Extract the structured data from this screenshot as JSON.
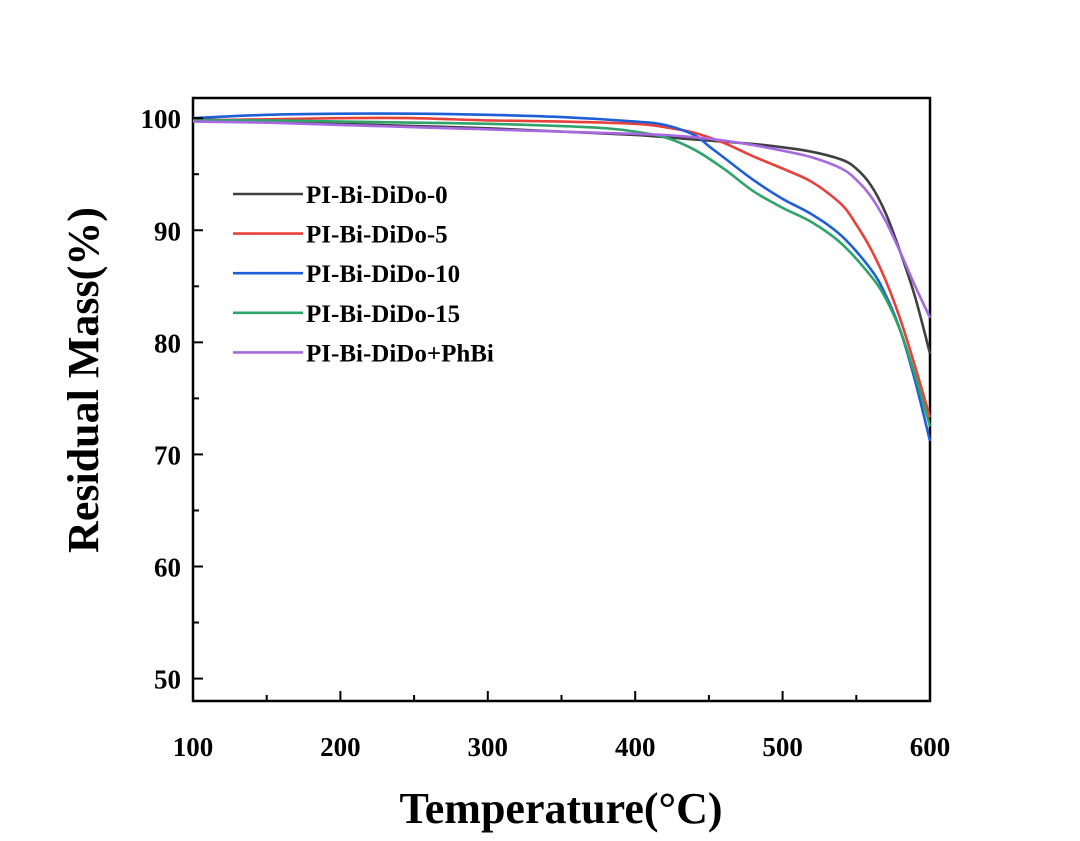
{
  "chart_data": {
    "type": "line",
    "title": "",
    "xlabel": "Temperature(°C)",
    "ylabel": "Residual Mass(%)",
    "xlim": [
      100,
      600
    ],
    "ylim": [
      48,
      102
    ],
    "xticks": [
      100,
      200,
      300,
      400,
      500,
      600
    ],
    "xtick_labels": [
      "100",
      "200",
      "300",
      "400",
      "500",
      "600"
    ],
    "yticks": [
      50,
      60,
      70,
      80,
      90,
      100
    ],
    "ytick_labels": [
      "50",
      "60",
      "70",
      "80",
      "90",
      "100"
    ],
    "grid": false,
    "legend_position": "upper-left",
    "series": [
      {
        "name": "PI-Bi-DiDo-0",
        "color": "#404040",
        "x": [
          100,
          150,
          200,
          250,
          300,
          350,
          400,
          430,
          450,
          480,
          500,
          520,
          540,
          550,
          560,
          570,
          580,
          590,
          600
        ],
        "y": [
          99.9,
          99.7,
          99.5,
          99.3,
          99.1,
          98.8,
          98.5,
          98.2,
          98.0,
          97.7,
          97.4,
          97.0,
          96.3,
          95.5,
          94.0,
          91.5,
          88.0,
          84.0,
          79.0
        ]
      },
      {
        "name": "PI-Bi-DiDo-5",
        "color": "#e8413c",
        "x": [
          100,
          150,
          200,
          250,
          300,
          350,
          400,
          420,
          440,
          460,
          480,
          500,
          520,
          540,
          550,
          560,
          570,
          580,
          590,
          600
        ],
        "y": [
          99.8,
          99.9,
          100.0,
          100.0,
          99.8,
          99.7,
          99.5,
          99.2,
          98.7,
          97.8,
          96.6,
          95.5,
          94.3,
          92.3,
          90.5,
          88.3,
          85.5,
          82.0,
          77.8,
          73.3
        ]
      },
      {
        "name": "PI-Bi-DiDo-10",
        "color": "#1f5fd6",
        "x": [
          100,
          150,
          200,
          250,
          300,
          350,
          400,
          420,
          440,
          450,
          460,
          480,
          500,
          520,
          540,
          560,
          570,
          580,
          590,
          600
        ],
        "y": [
          100.0,
          100.3,
          100.4,
          100.4,
          100.3,
          100.1,
          99.7,
          99.4,
          98.5,
          97.5,
          96.5,
          94.5,
          92.8,
          91.4,
          89.5,
          86.5,
          84.2,
          81.0,
          76.5,
          71.2
        ]
      },
      {
        "name": "PI-Bi-DiDo-15",
        "color": "#2ea36a",
        "x": [
          100,
          150,
          200,
          250,
          300,
          350,
          380,
          400,
          420,
          440,
          460,
          480,
          500,
          520,
          540,
          560,
          570,
          580,
          590,
          600
        ],
        "y": [
          99.8,
          99.8,
          99.7,
          99.6,
          99.5,
          99.3,
          99.1,
          98.8,
          98.3,
          97.2,
          95.5,
          93.5,
          92.0,
          90.7,
          88.8,
          85.9,
          83.9,
          81.0,
          77.0,
          72.5
        ]
      },
      {
        "name": "PI-Bi-DiDo+PhBi",
        "color": "#a769e0",
        "x": [
          100,
          150,
          200,
          250,
          300,
          350,
          400,
          420,
          440,
          460,
          480,
          500,
          520,
          540,
          550,
          560,
          570,
          580,
          590,
          600
        ],
        "y": [
          99.7,
          99.6,
          99.4,
          99.2,
          99.0,
          98.8,
          98.6,
          98.5,
          98.3,
          98.0,
          97.6,
          97.1,
          96.5,
          95.5,
          94.5,
          93.0,
          90.8,
          88.0,
          85.0,
          82.2
        ]
      }
    ]
  }
}
